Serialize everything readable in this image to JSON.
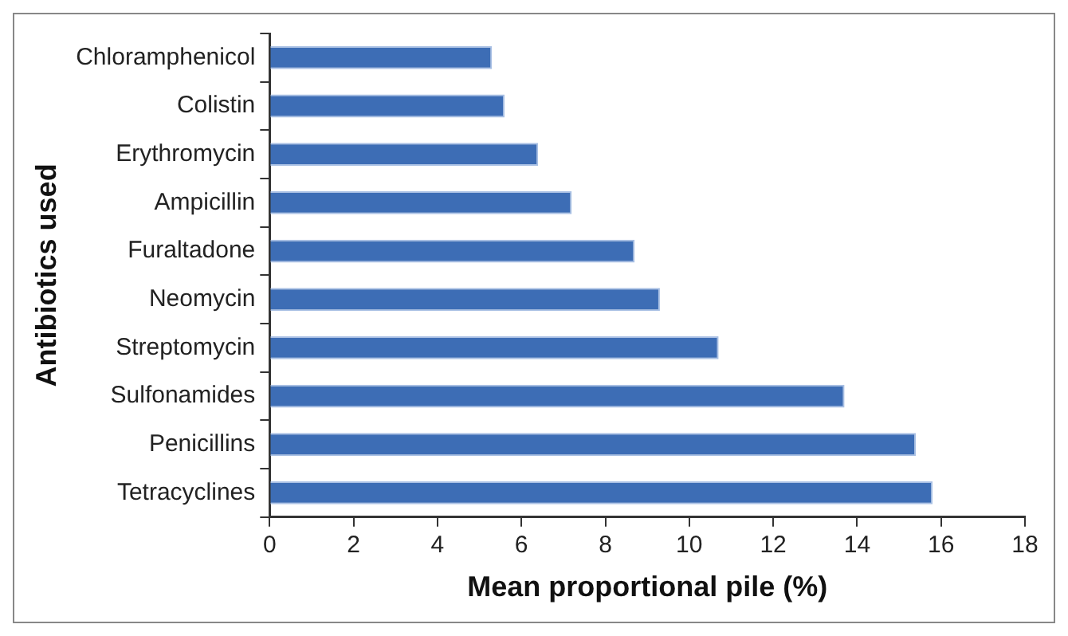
{
  "chart_data": {
    "type": "bar",
    "orientation": "horizontal",
    "xlabel": "Mean proportional pile (%)",
    "ylabel": "Antibiotics used",
    "categories": [
      "Chloramphenicol",
      "Colistin",
      "Erythromycin",
      "Ampicillin",
      "Furaltadone",
      "Neomycin",
      "Streptomycin",
      "Sulfonamides",
      "Penicillins",
      "Tetracyclines"
    ],
    "values": [
      5.3,
      5.6,
      6.4,
      7.2,
      8.7,
      9.3,
      10.7,
      13.7,
      15.4,
      15.8
    ],
    "color": "#3d6db5",
    "xlim": [
      0,
      18
    ],
    "xticks": [
      0,
      2,
      4,
      6,
      8,
      10,
      12,
      14,
      16,
      18
    ],
    "grid": false,
    "legend": false
  }
}
